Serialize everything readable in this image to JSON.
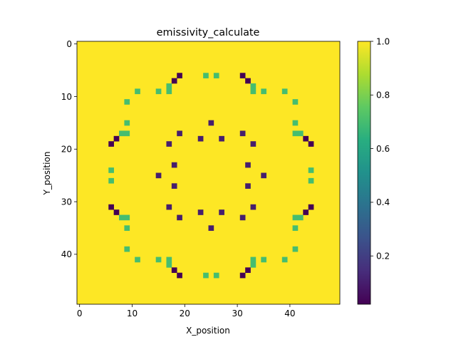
{
  "chart_data": {
    "type": "heatmap",
    "title": "emissivity_calculate",
    "xlabel": "X_position",
    "ylabel": "Y_position",
    "grid_size": [
      50,
      50
    ],
    "xlim": [
      -0.5,
      49.5
    ],
    "ylim": [
      49.5,
      -0.5
    ],
    "x_ticks": [
      "0",
      "10",
      "20",
      "30",
      "40"
    ],
    "x_tick_values": [
      0,
      10,
      20,
      30,
      40
    ],
    "y_ticks": [
      "0",
      "10",
      "20",
      "30",
      "40"
    ],
    "y_tick_values": [
      0,
      10,
      20,
      30,
      40
    ],
    "colormap": "viridis",
    "color_range": [
      0.02,
      1.0
    ],
    "colorbar_ticks": [
      "0.2",
      "0.4",
      "0.6",
      "0.8",
      "1.0"
    ],
    "colorbar_tick_values": [
      0.2,
      0.4,
      0.6,
      0.8,
      1.0
    ],
    "background_value": 1.0,
    "cells": [
      {
        "x": 19,
        "y": 6,
        "v": 0.02
      },
      {
        "x": 24,
        "y": 6,
        "v": 0.7
      },
      {
        "x": 26,
        "y": 6,
        "v": 0.7
      },
      {
        "x": 31,
        "y": 6,
        "v": 0.02
      },
      {
        "x": 18,
        "y": 7,
        "v": 0.02
      },
      {
        "x": 32,
        "y": 7,
        "v": 0.02
      },
      {
        "x": 17,
        "y": 8,
        "v": 0.7
      },
      {
        "x": 33,
        "y": 8,
        "v": 0.7
      },
      {
        "x": 11,
        "y": 9,
        "v": 0.7
      },
      {
        "x": 15,
        "y": 9,
        "v": 0.7
      },
      {
        "x": 17,
        "y": 9,
        "v": 0.7
      },
      {
        "x": 33,
        "y": 9,
        "v": 0.7
      },
      {
        "x": 35,
        "y": 9,
        "v": 0.7
      },
      {
        "x": 39,
        "y": 9,
        "v": 0.7
      },
      {
        "x": 9,
        "y": 11,
        "v": 0.7
      },
      {
        "x": 41,
        "y": 11,
        "v": 0.7
      },
      {
        "x": 9,
        "y": 15,
        "v": 0.7
      },
      {
        "x": 25,
        "y": 15,
        "v": 0.1
      },
      {
        "x": 41,
        "y": 15,
        "v": 0.7
      },
      {
        "x": 8,
        "y": 17,
        "v": 0.7
      },
      {
        "x": 9,
        "y": 17,
        "v": 0.7
      },
      {
        "x": 19,
        "y": 17,
        "v": 0.1
      },
      {
        "x": 31,
        "y": 17,
        "v": 0.1
      },
      {
        "x": 41,
        "y": 17,
        "v": 0.7
      },
      {
        "x": 42,
        "y": 17,
        "v": 0.7
      },
      {
        "x": 7,
        "y": 18,
        "v": 0.02
      },
      {
        "x": 23,
        "y": 18,
        "v": 0.1
      },
      {
        "x": 27,
        "y": 18,
        "v": 0.1
      },
      {
        "x": 43,
        "y": 18,
        "v": 0.02
      },
      {
        "x": 6,
        "y": 19,
        "v": 0.02
      },
      {
        "x": 17,
        "y": 19,
        "v": 0.1
      },
      {
        "x": 33,
        "y": 19,
        "v": 0.1
      },
      {
        "x": 44,
        "y": 19,
        "v": 0.02
      },
      {
        "x": 18,
        "y": 23,
        "v": 0.1
      },
      {
        "x": 32,
        "y": 23,
        "v": 0.1
      },
      {
        "x": 6,
        "y": 24,
        "v": 0.7
      },
      {
        "x": 44,
        "y": 24,
        "v": 0.7
      },
      {
        "x": 15,
        "y": 25,
        "v": 0.1
      },
      {
        "x": 35,
        "y": 25,
        "v": 0.1
      },
      {
        "x": 6,
        "y": 26,
        "v": 0.7
      },
      {
        "x": 44,
        "y": 26,
        "v": 0.7
      },
      {
        "x": 18,
        "y": 27,
        "v": 0.1
      },
      {
        "x": 32,
        "y": 27,
        "v": 0.1
      },
      {
        "x": 6,
        "y": 31,
        "v": 0.02
      },
      {
        "x": 17,
        "y": 31,
        "v": 0.1
      },
      {
        "x": 33,
        "y": 31,
        "v": 0.1
      },
      {
        "x": 44,
        "y": 31,
        "v": 0.02
      },
      {
        "x": 7,
        "y": 32,
        "v": 0.02
      },
      {
        "x": 23,
        "y": 32,
        "v": 0.1
      },
      {
        "x": 27,
        "y": 32,
        "v": 0.1
      },
      {
        "x": 43,
        "y": 32,
        "v": 0.02
      },
      {
        "x": 8,
        "y": 33,
        "v": 0.7
      },
      {
        "x": 9,
        "y": 33,
        "v": 0.7
      },
      {
        "x": 19,
        "y": 33,
        "v": 0.1
      },
      {
        "x": 31,
        "y": 33,
        "v": 0.1
      },
      {
        "x": 41,
        "y": 33,
        "v": 0.7
      },
      {
        "x": 42,
        "y": 33,
        "v": 0.7
      },
      {
        "x": 9,
        "y": 35,
        "v": 0.7
      },
      {
        "x": 25,
        "y": 35,
        "v": 0.1
      },
      {
        "x": 41,
        "y": 35,
        "v": 0.7
      },
      {
        "x": 9,
        "y": 39,
        "v": 0.7
      },
      {
        "x": 41,
        "y": 39,
        "v": 0.7
      },
      {
        "x": 11,
        "y": 41,
        "v": 0.7
      },
      {
        "x": 15,
        "y": 41,
        "v": 0.7
      },
      {
        "x": 17,
        "y": 41,
        "v": 0.7
      },
      {
        "x": 33,
        "y": 41,
        "v": 0.7
      },
      {
        "x": 35,
        "y": 41,
        "v": 0.7
      },
      {
        "x": 39,
        "y": 41,
        "v": 0.7
      },
      {
        "x": 17,
        "y": 42,
        "v": 0.7
      },
      {
        "x": 33,
        "y": 42,
        "v": 0.7
      },
      {
        "x": 18,
        "y": 43,
        "v": 0.02
      },
      {
        "x": 32,
        "y": 43,
        "v": 0.02
      },
      {
        "x": 19,
        "y": 44,
        "v": 0.02
      },
      {
        "x": 24,
        "y": 44,
        "v": 0.7
      },
      {
        "x": 26,
        "y": 44,
        "v": 0.7
      },
      {
        "x": 31,
        "y": 44,
        "v": 0.02
      }
    ]
  }
}
